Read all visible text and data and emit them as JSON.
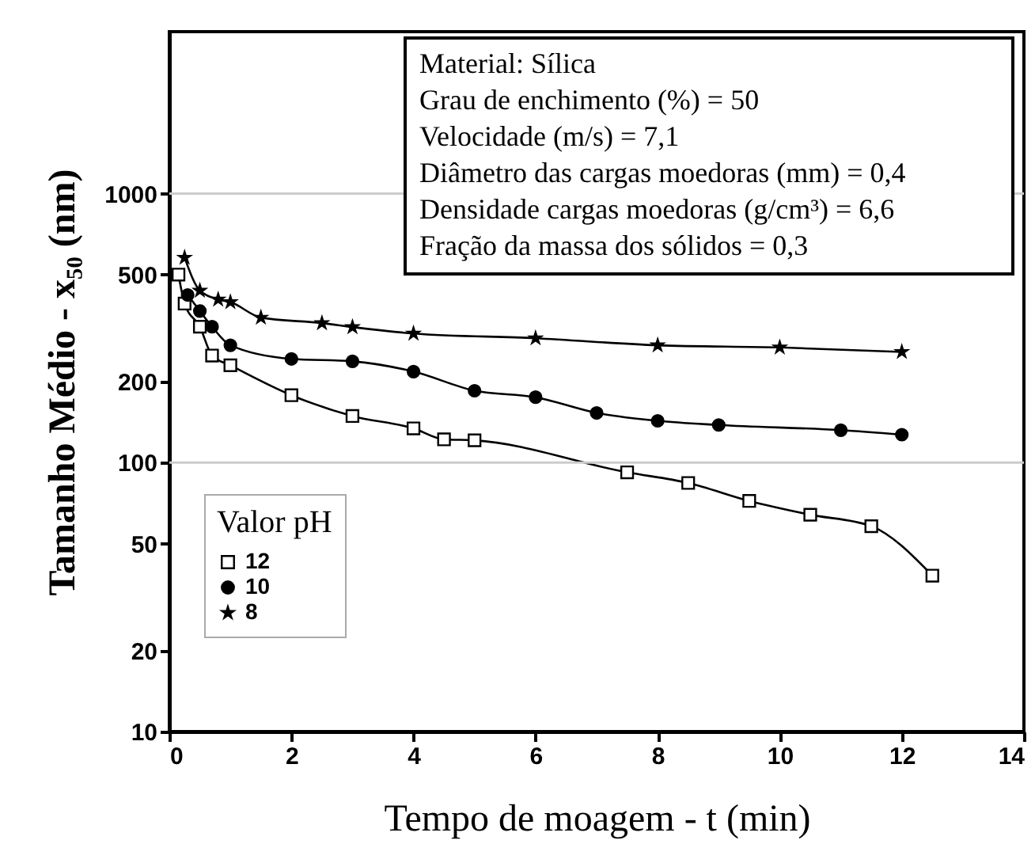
{
  "chart_data": {
    "type": "line",
    "xlabel": "Tempo de moagem - t (min)",
    "ylabel": "Tamanho Médio - x₅₀ (nm)",
    "legend_title": "Valor pH",
    "legend": "bottom left",
    "log": "y",
    "grid": false,
    "xlim": [
      0,
      14
    ],
    "xticks": [
      0,
      2,
      4,
      6,
      8,
      10,
      12,
      14
    ],
    "ylim": [
      10,
      4000
    ],
    "yticks": [
      10,
      20,
      50,
      100,
      200,
      500,
      1000
    ],
    "ref_lines": [
      {
        "axis": "y",
        "value": 100,
        "color": "#cccccc"
      },
      {
        "axis": "y",
        "value": 1000,
        "color": "#cccccc"
      }
    ],
    "annotations": [
      "Material: Sílica",
      "Grau de enchimento (%) = 50",
      "Velocidade  (m/s) = 7,1",
      "Diâmetro das cargas moedoras (mm) = 0,4",
      "Densidade cargas moedoras (g/cm³) = 6,6",
      "Fração da massa dos sólidos = 0,3"
    ],
    "series": [
      {
        "name": "12",
        "color": "#000000",
        "marker": "square",
        "x": [
          0.15,
          0.25,
          0.5,
          0.7,
          1,
          2,
          3,
          4,
          4.5,
          5,
          7.5,
          8.5,
          9.5,
          10.5,
          11.5,
          12.5
        ],
        "values": [
          500,
          390,
          320,
          250,
          230,
          178,
          149,
          134,
          122,
          121,
          92,
          84,
          72,
          64,
          58,
          38
        ]
      },
      {
        "name": "10",
        "color": "#000000",
        "marker": "circle",
        "x": [
          0.3,
          0.5,
          0.7,
          1,
          2,
          3,
          4,
          5,
          6,
          7,
          8,
          9,
          11,
          12
        ],
        "values": [
          420,
          366,
          320,
          273,
          243,
          238,
          218,
          185,
          175,
          153,
          143,
          138,
          132,
          127
        ]
      },
      {
        "name": "8",
        "color": "#000000",
        "marker": "star",
        "x": [
          0.25,
          0.5,
          0.8,
          1,
          1.5,
          2.5,
          3,
          4,
          6,
          8,
          10,
          12
        ],
        "values": [
          578,
          436,
          404,
          395,
          346,
          330,
          319,
          302,
          290,
          273,
          268,
          258
        ]
      }
    ]
  }
}
